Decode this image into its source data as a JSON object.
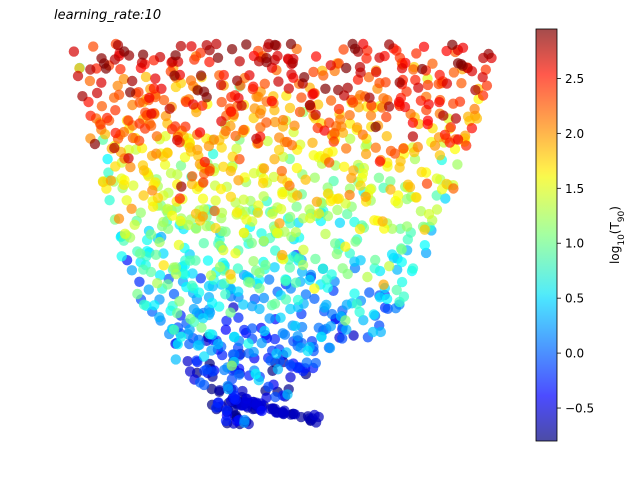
{
  "chart_data": {
    "type": "scatter",
    "title": "learning_rate:10",
    "xlabel": "",
    "ylabel": "",
    "axes_visible": false,
    "grid": false,
    "marker_alpha": 0.7,
    "colormap": "jet",
    "colorbar": {
      "label": "log10(T90)",
      "label_main": "log",
      "label_sub": "10",
      "label_tail": "(T",
      "label_sub2": "90",
      "label_end": ")",
      "vmin": -0.8,
      "vmax": 2.95,
      "ticks": [
        -0.5,
        0.0,
        0.5,
        1.0,
        1.5,
        2.0,
        2.5
      ],
      "tick_labels": [
        "−0.5",
        "0.0",
        "0.5",
        "1.0",
        "1.5",
        "2.0",
        "2.5"
      ]
    },
    "xlim": [
      0,
      1
    ],
    "ylim": [
      0,
      1
    ],
    "point_count": 1250,
    "cloud_description": "points form a funnel: wide top band (high values, red/orange) narrowing to a thin tail at the bottom (low values, blue)",
    "seed": 7
  }
}
